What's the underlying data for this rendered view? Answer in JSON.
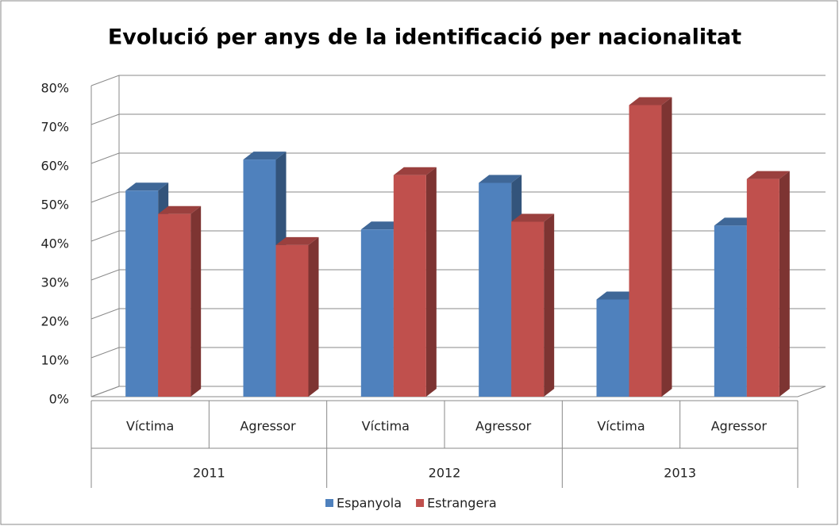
{
  "chart_data": {
    "type": "bar3d",
    "title": "Evolució per anys de la identificació per nacionalitat",
    "categories": [
      "Víctima",
      "Agressor",
      "Víctima",
      "Agressor",
      "Víctima",
      "Agressor"
    ],
    "groups": [
      "2011",
      "2012",
      "2013"
    ],
    "series": [
      {
        "name": "Espanyola",
        "color": "#4f81bd",
        "values": [
          53,
          61,
          43,
          55,
          25,
          44
        ]
      },
      {
        "name": "Estrangera",
        "color": "#c0504d",
        "values": [
          47,
          39,
          57,
          45,
          75,
          56
        ]
      }
    ],
    "ylim": [
      0,
      80
    ],
    "yticks": [
      {
        "value": 0,
        "label": "0%"
      },
      {
        "value": 10,
        "label": "10%"
      },
      {
        "value": 20,
        "label": "20%"
      },
      {
        "value": 30,
        "label": "30%"
      },
      {
        "value": 40,
        "label": "40%"
      },
      {
        "value": 50,
        "label": "50%"
      },
      {
        "value": 60,
        "label": "60%"
      },
      {
        "value": 70,
        "label": "70%"
      },
      {
        "value": 80,
        "label": "80%"
      }
    ],
    "grid": true,
    "legend": "bottom"
  }
}
